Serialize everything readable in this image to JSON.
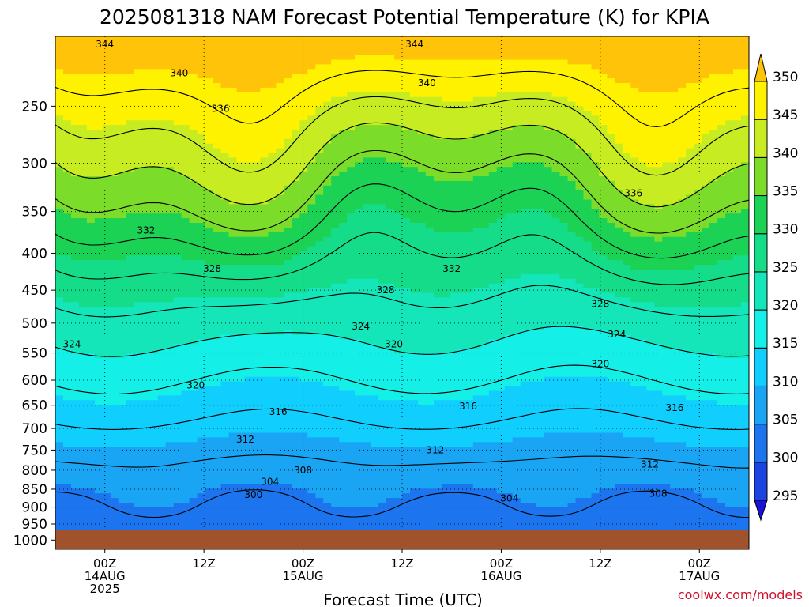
{
  "title": "2025081318 NAM Forecast Potential Temperature (K) for KPIA",
  "credit": "coolwx.com/models",
  "chart_data": {
    "type": "heatmap",
    "title": "2025081318 NAM Forecast Potential Temperature (K) for KPIA",
    "xlabel": "Forecast Time (UTC)",
    "ylabel": "",
    "x_ticks": [
      {
        "hour": 6,
        "lines": [
          "00Z",
          "14AUG",
          "2025"
        ]
      },
      {
        "hour": 18,
        "lines": [
          "12Z"
        ]
      },
      {
        "hour": 30,
        "lines": [
          "00Z",
          "15AUG"
        ]
      },
      {
        "hour": 42,
        "lines": [
          "12Z"
        ]
      },
      {
        "hour": 54,
        "lines": [
          "00Z",
          "16AUG"
        ]
      },
      {
        "hour": 66,
        "lines": [
          "12Z"
        ]
      },
      {
        "hour": 78,
        "lines": [
          "00Z",
          "17AUG"
        ]
      }
    ],
    "xlim": [
      0,
      84
    ],
    "y_ticks": [
      250,
      300,
      350,
      400,
      450,
      500,
      550,
      600,
      650,
      700,
      750,
      800,
      850,
      900,
      950,
      1000
    ],
    "ylim": [
      1030,
      200
    ],
    "y_scale": "log-pressure",
    "colorbar": {
      "levels": [
        295,
        300,
        305,
        310,
        315,
        320,
        325,
        330,
        335,
        340,
        345,
        350
      ],
      "colors": [
        "#1a12d6",
        "#1b44e0",
        "#1c74ee",
        "#1aa4f4",
        "#10cfff",
        "#14f0e8",
        "#14e6ba",
        "#15dc88",
        "#1cd254",
        "#7cdc2a",
        "#c8ec22",
        "#fff200",
        "#ffc40a"
      ]
    },
    "contour_labels": [
      {
        "text": "344",
        "hour": 6.0,
        "p": 205
      },
      {
        "text": "344",
        "hour": 43.5,
        "p": 205
      },
      {
        "text": "340",
        "hour": 15.0,
        "p": 225
      },
      {
        "text": "340",
        "hour": 45.0,
        "p": 232
      },
      {
        "text": "336",
        "hour": 20.0,
        "p": 252
      },
      {
        "text": "336",
        "hour": 70.0,
        "p": 330
      },
      {
        "text": "332",
        "hour": 11.0,
        "p": 372
      },
      {
        "text": "332",
        "hour": 48.0,
        "p": 420
      },
      {
        "text": "328",
        "hour": 19.0,
        "p": 420
      },
      {
        "text": "328",
        "hour": 40.0,
        "p": 450
      },
      {
        "text": "328",
        "hour": 66.0,
        "p": 470
      },
      {
        "text": "324",
        "hour": 2.0,
        "p": 535
      },
      {
        "text": "324",
        "hour": 37.0,
        "p": 505
      },
      {
        "text": "324",
        "hour": 68.0,
        "p": 518
      },
      {
        "text": "320",
        "hour": 41.0,
        "p": 535
      },
      {
        "text": "320",
        "hour": 66.0,
        "p": 570
      },
      {
        "text": "320",
        "hour": 17.0,
        "p": 610
      },
      {
        "text": "316",
        "hour": 27.0,
        "p": 664
      },
      {
        "text": "316",
        "hour": 50.0,
        "p": 652
      },
      {
        "text": "316",
        "hour": 75.0,
        "p": 655
      },
      {
        "text": "312",
        "hour": 23.0,
        "p": 725
      },
      {
        "text": "312",
        "hour": 46.0,
        "p": 750
      },
      {
        "text": "312",
        "hour": 72.0,
        "p": 785
      },
      {
        "text": "308",
        "hour": 30.0,
        "p": 800
      },
      {
        "text": "308",
        "hour": 73.0,
        "p": 862
      },
      {
        "text": "304",
        "hour": 26.0,
        "p": 830
      },
      {
        "text": "304",
        "hour": 55.0,
        "p": 875
      },
      {
        "text": "300",
        "hour": 24.0,
        "p": 865
      }
    ]
  }
}
